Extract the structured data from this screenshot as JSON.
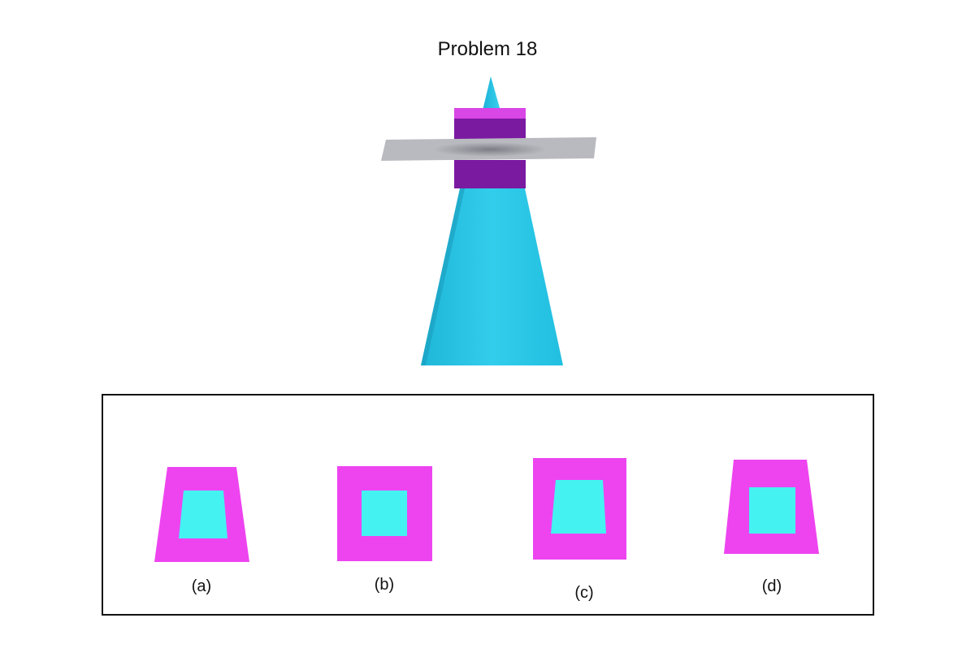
{
  "problem": {
    "title": "Problem 18"
  },
  "options": [
    {
      "label": "(a)",
      "outer_shape": "trapezoid-narrow-top",
      "inner_shape": "trapezoid-narrow-top"
    },
    {
      "label": "(b)",
      "outer_shape": "square",
      "inner_shape": "square"
    },
    {
      "label": "(c)",
      "outer_shape": "square",
      "inner_shape": "trapezoid-narrow-top"
    },
    {
      "label": "(d)",
      "outer_shape": "trapezoid-narrow-top",
      "inner_shape": "square"
    }
  ],
  "colors": {
    "cube_front": "#7a1aa0",
    "cube_top": "#d946e6",
    "cone": "#2cc6e6",
    "plane": "#b9b9c0",
    "option_outer": "#ee44f0",
    "option_inner": "#44f2f2",
    "text": "#111111",
    "border": "#111111"
  }
}
